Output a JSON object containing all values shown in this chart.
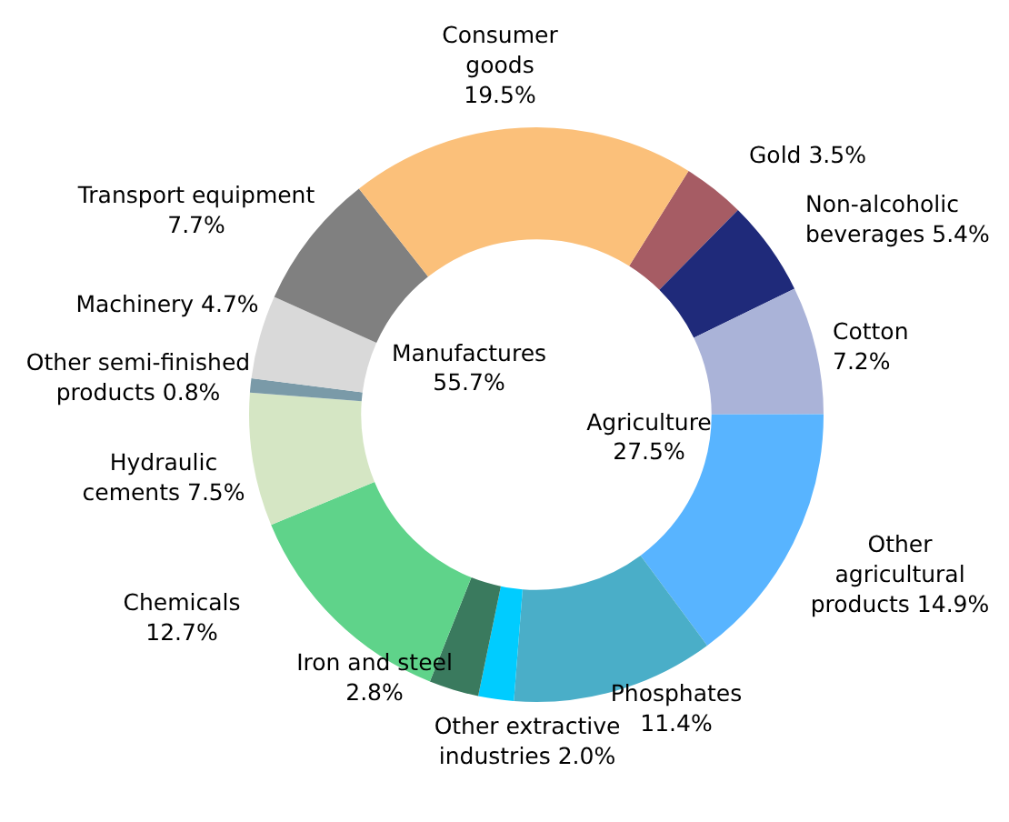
{
  "chart_data": {
    "type": "donut",
    "categories": [
      "Gold",
      "Non-alcoholic beverages",
      "Cotton",
      "Other agricultural products",
      "Phosphates",
      "Other extractive industries",
      "Iron and steel",
      "Chemicals",
      "Hydraulic cements",
      "Other semi-finished products",
      "Machinery",
      "Transport equipment",
      "Consumer goods"
    ],
    "values": [
      3.5,
      5.4,
      7.2,
      14.9,
      11.4,
      2.0,
      2.8,
      12.7,
      7.5,
      0.8,
      4.7,
      7.7,
      19.5
    ],
    "colors": [
      "#a65c64",
      "#1f2a7a",
      "#aab3d8",
      "#58b4ff",
      "#4aaec8",
      "#00ccff",
      "#3a7a5e",
      "#5fd38a",
      "#d5e6c4",
      "#7a9aa8",
      "#d9d9d9",
      "#808080",
      "#fbc07a"
    ],
    "value_labels": [
      "3.5%",
      "5.4%",
      "7.2%",
      "14.9%",
      "11.4%",
      "2.0%",
      "2.8%",
      "12.7%",
      "7.5%",
      "0.8%",
      "4.7%",
      "7.7%",
      "19.5%"
    ],
    "annotations": [
      "Manufactures 55.7%",
      "Agriculture 27.5%"
    ]
  }
}
